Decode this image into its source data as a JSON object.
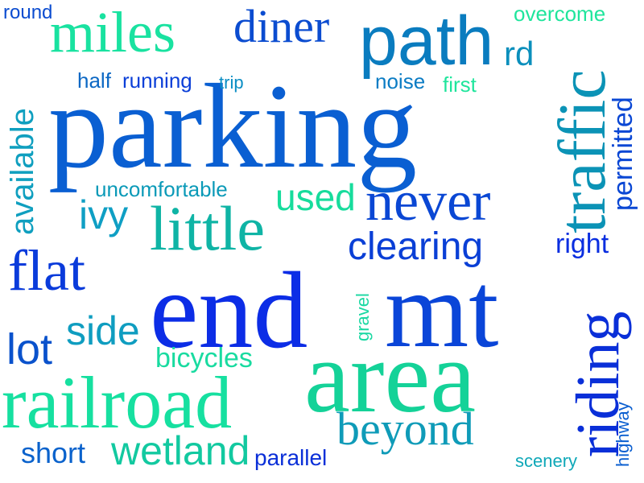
{
  "words": {
    "parking": {
      "text": "parking",
      "color": "#0a5fd2"
    },
    "end": {
      "text": "end",
      "color": "#0c2de6"
    },
    "mt": {
      "text": "mt",
      "color": "#0a45d8"
    },
    "area": {
      "text": "area",
      "color": "#14d298"
    },
    "railroad": {
      "text": "railroad",
      "color": "#16e0a0"
    },
    "path": {
      "text": "path",
      "color": "#0a7cbf"
    },
    "miles": {
      "text": "miles",
      "color": "#19e2a0"
    },
    "traffic": {
      "text": "traffic",
      "color": "#0b93b6"
    },
    "riding": {
      "text": "riding",
      "color": "#0a2fd8"
    },
    "little": {
      "text": "little",
      "color": "#0fb4a5"
    },
    "never": {
      "text": "never",
      "color": "#0a47d4"
    },
    "flat": {
      "text": "flat",
      "color": "#0a3bdb"
    },
    "diner": {
      "text": "diner",
      "color": "#0b4cd0"
    },
    "beyond": {
      "text": "beyond",
      "color": "#0f9bb8"
    },
    "wetland": {
      "text": "wetland",
      "color": "#12c9a0"
    },
    "lot": {
      "text": "lot",
      "color": "#0a52cc"
    },
    "side": {
      "text": "side",
      "color": "#0f9dc0"
    },
    "clearing": {
      "text": "clearing",
      "color": "#0a3fd6"
    },
    "available": {
      "text": "available",
      "color": "#0f9fbf"
    },
    "ivy": {
      "text": "ivy",
      "color": "#0f9fc4"
    },
    "used": {
      "text": "used",
      "color": "#17dc9c"
    },
    "permitted": {
      "text": "permitted",
      "color": "#0a47d4"
    },
    "rd": {
      "text": "rd",
      "color": "#0b8fbc"
    },
    "right": {
      "text": "right",
      "color": "#0a2ee0"
    },
    "short": {
      "text": "short",
      "color": "#0a62cc"
    },
    "bicycles": {
      "text": "bicycles",
      "color": "#19dba0"
    },
    "parallel": {
      "text": "parallel",
      "color": "#0a2fd8"
    },
    "uncomfortable": {
      "text": "uncomfortable",
      "color": "#0b9ab8"
    },
    "running": {
      "text": "running",
      "color": "#0b3fd8"
    },
    "half": {
      "text": "half",
      "color": "#0c68c4"
    },
    "noise": {
      "text": "noise",
      "color": "#0b7cc4"
    },
    "first": {
      "text": "first",
      "color": "#1fe59c"
    },
    "trip": {
      "text": "trip",
      "color": "#0b8ec4"
    },
    "overcome": {
      "text": "overcome",
      "color": "#1fe59c"
    },
    "round": {
      "text": "round",
      "color": "#0b4cd0"
    },
    "gravel": {
      "text": "gravel",
      "color": "#1ad8a2"
    },
    "highway": {
      "text": "highway",
      "color": "#0b5fd0"
    },
    "scenery": {
      "text": "scenery",
      "color": "#0fa8b8"
    }
  }
}
